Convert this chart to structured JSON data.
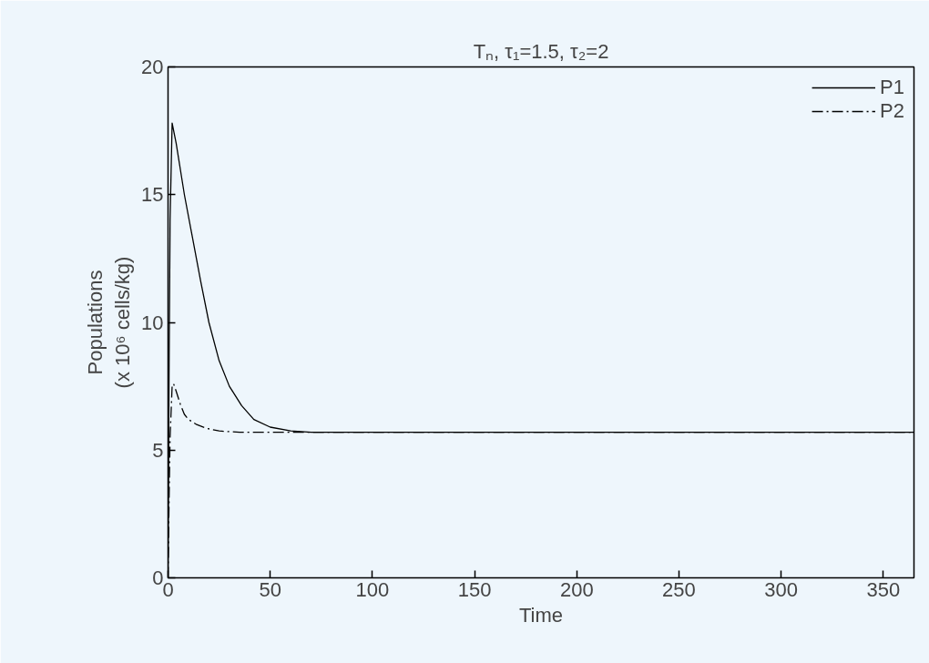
{
  "chart_data": {
    "type": "line",
    "title": "Tₙ, τ₁=1.5, τ₂=2",
    "xlabel": "Time",
    "ylabel": "Populations\n(x 10⁶ cells/kg)",
    "xlim": [
      0,
      365
    ],
    "xticks": [
      0,
      50,
      100,
      150,
      200,
      250,
      300,
      350
    ],
    "ylim": [
      0,
      20
    ],
    "yticks": [
      0,
      5,
      10,
      15,
      20
    ],
    "grid": false,
    "legend": "top right",
    "marker": "none",
    "series": [
      {
        "name": "P1",
        "color": "#000000",
        "line_style": "solid",
        "x": [
          0,
          0.5,
          1,
          2,
          4,
          8,
          12,
          16,
          20,
          25,
          30,
          36,
          42,
          50,
          60,
          70,
          365
        ],
        "values": [
          0,
          8,
          14,
          17.8,
          17.0,
          15.0,
          13.3,
          11.6,
          10.0,
          8.5,
          7.5,
          6.74,
          6.2,
          5.9,
          5.75,
          5.7,
          5.7
        ]
      },
      {
        "name": "P2",
        "color": "#000000",
        "line_style": "dashdot",
        "x": [
          0,
          0.5,
          1,
          2,
          2.7,
          4,
          6,
          8,
          10,
          14,
          19,
          25,
          35,
          365
        ],
        "values": [
          0,
          3,
          5.5,
          7.5,
          7.6,
          7.3,
          6.8,
          6.4,
          6.2,
          6.0,
          5.85,
          5.75,
          5.7,
          5.7
        ]
      }
    ]
  }
}
